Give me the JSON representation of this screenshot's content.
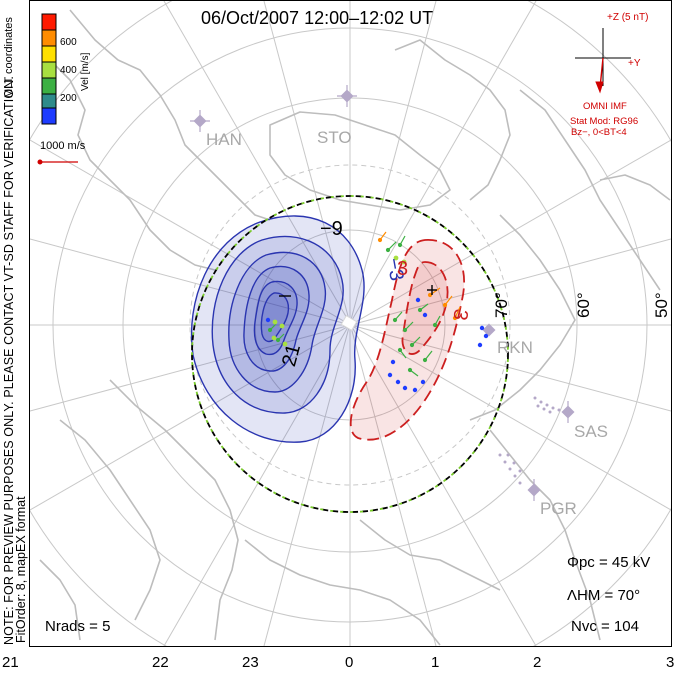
{
  "header": {
    "title": "06/Oct/2007  12:00–12:02  UT"
  },
  "side_note": {
    "line1": "NOTE: FOR PREVIEW PURPOSES ONLY. PLEASE CONTACT VT-SD STAFF FOR VERIFICATION.",
    "line2": "FitOrder: 8,  mapEX format"
  },
  "color_bar": {
    "label": "Vel [m/s]",
    "ticks": [
      "600",
      "400",
      "200"
    ],
    "colors": [
      "#ff1a00",
      "#ff8c00",
      "#ffe000",
      "#a8e040",
      "#3cb043",
      "#2e8b8b",
      "#1e3cff"
    ],
    "coord_label": "MLT coordinates"
  },
  "scale_vector": {
    "label": "1000 m/s",
    "color": "#d00000"
  },
  "imf": {
    "z_label": "+Z (5 nT)",
    "y_label": "+Y",
    "source": "OMNI IMF",
    "model": "Stat Mod: RG96",
    "condition": "Bz−, 0<BT<4"
  },
  "stations": [
    "HAN",
    "STO",
    "RKN",
    "SAS",
    "PGR"
  ],
  "latitude_labels": [
    "70°",
    "60°",
    "50°"
  ],
  "contour_labels": [
    "−9",
    "21",
    "−3",
    "3",
    "3"
  ],
  "mlt_axis": [
    "21",
    "22",
    "23",
    "0",
    "1",
    "2",
    "3"
  ],
  "stats": {
    "phi_pc": "Φpc  =  45 kV",
    "lambda_hm": "ΛHM  =  70°",
    "n_vc": "Nvc  =  104",
    "n_rads": "Nrads  =  5"
  },
  "colors": {
    "negative_cell": "#2a35b0",
    "positive_cell": "#cc1f1f",
    "boundary_green": "#7acc2a",
    "grid": "#c8c8c8",
    "coast": "#bdbdbd"
  }
}
